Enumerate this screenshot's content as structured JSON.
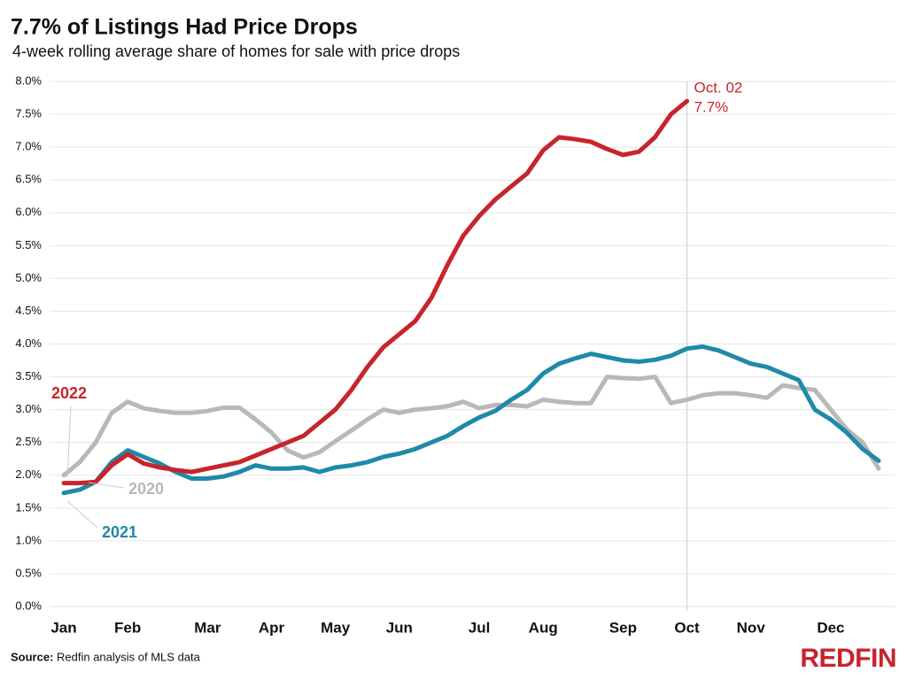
{
  "chart_data": {
    "type": "line",
    "title": "7.7% of Listings Had Price Drops",
    "subtitle": "4-week rolling average share of homes for sale with price drops",
    "categories": [
      "Jan",
      null,
      null,
      null,
      "Feb",
      null,
      null,
      null,
      null,
      "Mar",
      null,
      null,
      null,
      "Apr",
      null,
      null,
      null,
      "May",
      null,
      null,
      null,
      "Jun",
      null,
      null,
      null,
      null,
      "Jul",
      null,
      null,
      null,
      "Aug",
      null,
      null,
      null,
      null,
      "Sep",
      null,
      null,
      null,
      "Oct",
      null,
      null,
      null,
      "Nov",
      null,
      null,
      null,
      null,
      "Dec",
      null,
      null,
      null
    ],
    "series": [
      {
        "name": "2022",
        "color": "#c8242b",
        "values": [
          1.88,
          1.88,
          1.9,
          2.15,
          2.32,
          2.18,
          2.12,
          2.08,
          2.05,
          2.1,
          2.15,
          2.2,
          2.3,
          2.4,
          2.5,
          2.6,
          2.8,
          3.0,
          3.3,
          3.65,
          3.95,
          4.15,
          4.35,
          4.7,
          5.2,
          5.65,
          5.95,
          6.2,
          6.4,
          6.6,
          6.95,
          7.15,
          7.12,
          7.08,
          6.97,
          6.88,
          6.93,
          7.15,
          7.5,
          7.7,
          null,
          null,
          null,
          null,
          null,
          null,
          null,
          null,
          null,
          null,
          null,
          null
        ],
        "value_labels": [
          null,
          null,
          null,
          null,
          null,
          null,
          null,
          null,
          null,
          null,
          null,
          null,
          null,
          null,
          null,
          null,
          null,
          null,
          null,
          null,
          null,
          null,
          null,
          null,
          null,
          null,
          null,
          null,
          null,
          null,
          null,
          null,
          null,
          null,
          null,
          null,
          null,
          null,
          null,
          "7.7%",
          null,
          null,
          null,
          null,
          null,
          null,
          null,
          null,
          null,
          null,
          null,
          null
        ]
      },
      {
        "name": "2021",
        "color": "#1f8aa8",
        "values": [
          1.73,
          1.78,
          1.9,
          2.2,
          2.38,
          2.28,
          2.18,
          2.05,
          1.95,
          1.95,
          1.98,
          2.05,
          2.15,
          2.1,
          2.1,
          2.12,
          2.05,
          2.12,
          2.15,
          2.2,
          2.28,
          2.33,
          2.4,
          2.5,
          2.6,
          2.75,
          2.88,
          2.98,
          3.15,
          3.3,
          3.55,
          3.7,
          3.78,
          3.85,
          3.8,
          3.75,
          3.73,
          3.76,
          3.82,
          3.93,
          3.96,
          3.9,
          3.8,
          3.7,
          3.65,
          3.55,
          3.45,
          3.0,
          2.85,
          2.65,
          2.4,
          2.22
        ]
      },
      {
        "name": "2020",
        "color": "#b8b8b8",
        "values": [
          2.0,
          2.2,
          2.5,
          2.95,
          3.12,
          3.02,
          2.98,
          2.95,
          2.95,
          2.98,
          3.03,
          3.03,
          2.85,
          2.65,
          2.38,
          2.27,
          2.35,
          2.52,
          2.68,
          2.85,
          3.0,
          2.95,
          3.0,
          3.02,
          3.05,
          3.12,
          3.02,
          3.07,
          3.07,
          3.05,
          3.15,
          3.12,
          3.1,
          3.1,
          3.5,
          3.48,
          3.47,
          3.5,
          3.1,
          3.15,
          3.22,
          3.25,
          3.25,
          3.22,
          3.18,
          3.37,
          3.33,
          3.3,
          3.0,
          2.7,
          2.5,
          2.1
        ]
      }
    ],
    "annotation": "Oct. 02",
    "ylim": [
      0,
      8
    ],
    "yticks": [
      {
        "value": 0,
        "label": "0.0%"
      },
      {
        "value": 0.5,
        "label": "0.5%"
      },
      {
        "value": 1,
        "label": "1.0%"
      },
      {
        "value": 1.5,
        "label": "1.5%"
      },
      {
        "value": 2,
        "label": "2.0%"
      },
      {
        "value": 2.5,
        "label": "2.5%"
      },
      {
        "value": 3,
        "label": "3.0%"
      },
      {
        "value": 3.5,
        "label": "3.5%"
      },
      {
        "value": 4,
        "label": "4.0%"
      },
      {
        "value": 4.5,
        "label": "4.5%"
      },
      {
        "value": 5,
        "label": "5.0%"
      },
      {
        "value": 5.5,
        "label": "5.5%"
      },
      {
        "value": 6,
        "label": "6.0%"
      },
      {
        "value": 6.5,
        "label": "6.5%"
      },
      {
        "value": 7,
        "label": "7.0%"
      },
      {
        "value": 7.5,
        "label": "7.5%"
      },
      {
        "value": 8,
        "label": "8.0%"
      }
    ],
    "grid": true,
    "source_label": "Source:",
    "source": "Redfin analysis of MLS data",
    "logo": "REDFIN"
  }
}
